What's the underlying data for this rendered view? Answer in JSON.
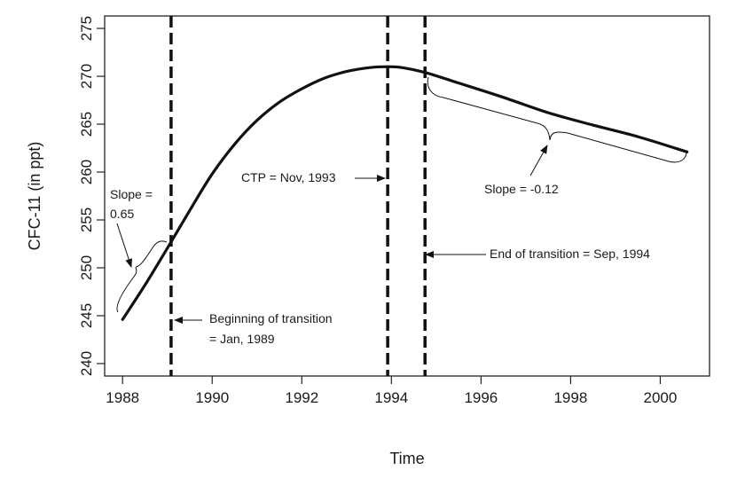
{
  "chart_data": {
    "type": "line",
    "title": "",
    "xlabel": "Time",
    "ylabel": "CFC-11 (in ppt)",
    "xlim": [
      1987.6,
      2001.1
    ],
    "ylim": [
      238.7,
      276.3
    ],
    "x_ticks": [
      1988,
      1990,
      1992,
      1994,
      1996,
      1998,
      2000
    ],
    "x_tick_labels": [
      "1988",
      "1990",
      "1992",
      "1994",
      "1996",
      "1998",
      "2000"
    ],
    "y_ticks": [
      240,
      245,
      250,
      255,
      260,
      265,
      270,
      275
    ],
    "y_tick_labels": [
      "240",
      "245",
      "250",
      "255",
      "260",
      "265",
      "270",
      "275"
    ],
    "grid": false,
    "series": [
      {
        "x": [
          1988.0,
          1988.5,
          1989.083,
          1989.5,
          1990.0,
          1990.5,
          1991.0,
          1991.5,
          1992.0,
          1992.5,
          1993.0,
          1993.5,
          1993.917,
          1994.25,
          1994.75,
          1995.5,
          1996.5,
          1997.5,
          1998.5,
          1999.5,
          2000.6
        ],
        "values": [
          244.6,
          248.2,
          252.7,
          256.0,
          259.8,
          262.9,
          265.4,
          267.3,
          268.7,
          269.8,
          270.5,
          270.9,
          271.0,
          270.9,
          270.4,
          269.3,
          267.8,
          266.2,
          264.9,
          263.7,
          262.1
        ]
      }
    ],
    "vlines": [
      {
        "x": 1989.083
      },
      {
        "x": 1993.917
      },
      {
        "x": 1994.75
      }
    ],
    "annotations": [
      {
        "label": "CTP = Nov, 1993"
      },
      {
        "label": "Beginning of transition",
        "label2": "= Jan, 1989"
      },
      {
        "label": "End of transition = Sep, 1994"
      },
      {
        "label": "Slope =",
        "label2": "0.65"
      },
      {
        "label": "Slope = -0.12"
      }
    ]
  }
}
